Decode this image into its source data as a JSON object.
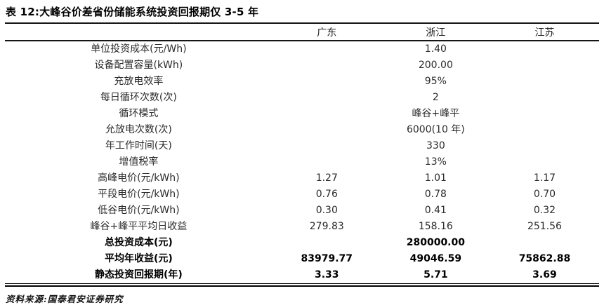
{
  "title": "表 12:大峰谷价差省份储能系统投资回报期仅 3-5 年",
  "source": "资料来源:国泰君安证券研究",
  "table": {
    "columns": [
      "广东",
      "浙江",
      "江苏"
    ],
    "rows": [
      {
        "label": "单位投资成本(元/Wh)",
        "merged": "1.40"
      },
      {
        "label": "设备配置容量(kWh)",
        "merged": "200.00"
      },
      {
        "label": "充放电效率",
        "merged": "95%"
      },
      {
        "label": "每日循环次数(次)",
        "merged": "2"
      },
      {
        "label": "循环模式",
        "merged": "峰谷+峰平"
      },
      {
        "label": "允放电次数(次)",
        "merged": "6000(10 年)"
      },
      {
        "label": "年工作时间(天)",
        "merged": "330"
      },
      {
        "label": "增值税率",
        "merged": "13%"
      },
      {
        "label": "高峰电价(元/kWh)",
        "values": [
          "1.27",
          "1.01",
          "1.17"
        ]
      },
      {
        "label": "平段电价(元/kWh)",
        "values": [
          "0.76",
          "0.78",
          "0.70"
        ]
      },
      {
        "label": "低谷电价(元/kWh)",
        "values": [
          "0.30",
          "0.41",
          "0.32"
        ]
      },
      {
        "label": "峰谷+峰平平均日收益",
        "values": [
          "279.83",
          "158.16",
          "251.56"
        ]
      },
      {
        "label": "总投资成本(元)",
        "merged": "280000.00",
        "bold": true
      },
      {
        "label": "平均年收益(元)",
        "values": [
          "83979.77",
          "49046.59",
          "75862.88"
        ],
        "bold": true
      },
      {
        "label": "静态投资回报期(年)",
        "values": [
          "3.33",
          "5.71",
          "3.69"
        ],
        "bold": true
      }
    ]
  }
}
